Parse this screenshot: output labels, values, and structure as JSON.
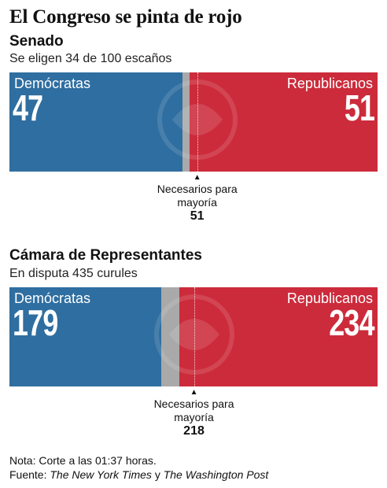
{
  "title": "El Congreso se pinta de rojo",
  "colors": {
    "dem": "#2f6ea0",
    "rep": "#cc2b3b",
    "undecided": "#a9a9a9"
  },
  "chart_data": [
    {
      "type": "bar",
      "title": "Senado",
      "subtitle": "Se eligen 34 de 100 escaños",
      "total": 100,
      "series": [
        {
          "name": "Demócratas",
          "value": 47
        },
        {
          "name": "Republicanos",
          "value": 51
        }
      ],
      "undecided": 2,
      "majority_label": "Necesarios para mayoría",
      "majority_value": 51
    },
    {
      "type": "bar",
      "title": "Cámara de Representantes",
      "subtitle": "En disputa 435 curules",
      "total": 435,
      "series": [
        {
          "name": "Demócratas",
          "value": 179
        },
        {
          "name": "Republicanos",
          "value": 234
        }
      ],
      "undecided": 22,
      "majority_label": "Necesarios para mayoría",
      "majority_value": 218
    }
  ],
  "footer": {
    "note": "Nota: Corte a las 01:37 horas.",
    "source_prefix": "Fuente: ",
    "source_1": "The New York Times",
    "source_and": " y ",
    "source_2": "The Washington Post"
  }
}
